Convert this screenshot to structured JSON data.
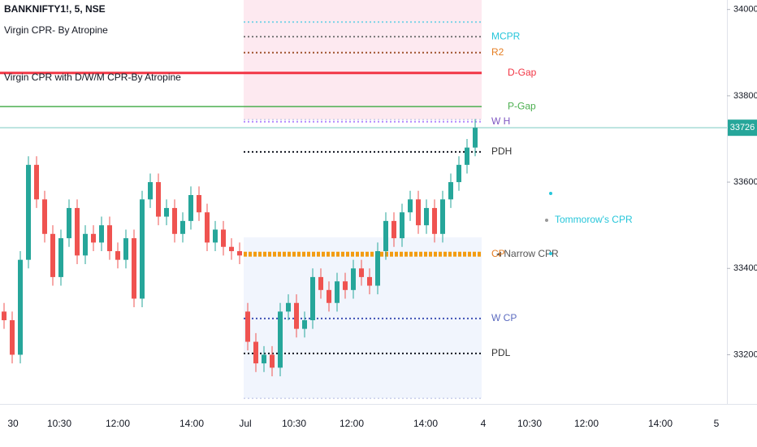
{
  "chart_data": {
    "type": "candlestick",
    "title": "BANKNIFTY1!, 5, NSE",
    "indicators": [
      "Virgin CPR- By Atropine",
      "Virgin CPR with D/W/M CPR-By Atropine"
    ],
    "x": [
      0.5,
      1.5,
      2.5,
      3.5,
      4.5,
      5.5,
      6.5,
      7.5,
      8.5,
      9.5,
      10.5,
      11.5,
      12.5,
      13.5,
      14.5,
      15.5,
      16.5,
      17.5,
      18.5,
      19.5,
      20.5,
      21.5,
      22.5,
      23.5,
      24.5,
      25.5,
      26.5,
      27.5,
      28.5,
      29.5,
      30.5,
      31.5,
      32.5,
      33.5,
      34.5,
      35.5,
      36.5,
      37.5,
      38.5,
      39.5,
      40.5,
      41.5,
      42.5,
      43.5,
      44.5,
      45.5,
      46.5,
      47.5,
      48.5,
      49.5,
      50.5,
      51.5,
      52.5,
      53.5,
      54.5,
      55.5,
      56.5,
      57.5,
      58.5
    ],
    "open": [
      33300,
      33280,
      33200,
      33420,
      33640,
      33560,
      33480,
      33380,
      33470,
      33540,
      33430,
      33480,
      33460,
      33500,
      33440,
      33420,
      33470,
      33330,
      33560,
      33600,
      33520,
      33540,
      33480,
      33510,
      33570,
      33530,
      33460,
      33490,
      33450,
      33440,
      33300,
      33230,
      33180,
      33200,
      33170,
      33300,
      33320,
      33260,
      33280,
      33380,
      33350,
      33320,
      33370,
      33350,
      33400,
      33380,
      33360,
      33440,
      33510,
      33470,
      33530,
      33560,
      33500,
      33540,
      33480,
      33560,
      33600,
      33640,
      33680
    ],
    "high": [
      33320,
      33300,
      33440,
      33660,
      33660,
      33580,
      33500,
      33490,
      33560,
      33560,
      33500,
      33500,
      33520,
      33520,
      33460,
      33490,
      33490,
      33580,
      33620,
      33620,
      33560,
      33560,
      33530,
      33590,
      33590,
      33550,
      33510,
      33510,
      33470,
      33460,
      33320,
      33250,
      33220,
      33220,
      33320,
      33340,
      33340,
      33300,
      33400,
      33400,
      33370,
      33390,
      33390,
      33420,
      33420,
      33400,
      33460,
      33530,
      33530,
      33550,
      33580,
      33580,
      33560,
      33560,
      33580,
      33620,
      33660,
      33700,
      33746
    ],
    "low": [
      33260,
      33180,
      33180,
      33400,
      33540,
      33460,
      33360,
      33360,
      33450,
      33410,
      33410,
      33440,
      33440,
      33420,
      33400,
      33400,
      33310,
      33310,
      33540,
      33500,
      33500,
      33460,
      33460,
      33490,
      33510,
      33440,
      33440,
      33430,
      33420,
      33410,
      33210,
      33160,
      33160,
      33150,
      33150,
      33280,
      33240,
      33240,
      33260,
      33330,
      33300,
      33300,
      33330,
      33330,
      33360,
      33340,
      33340,
      33420,
      33450,
      33450,
      33510,
      33480,
      33480,
      33460,
      33460,
      33540,
      33580,
      33620,
      33660
    ],
    "close": [
      33280,
      33200,
      33420,
      33640,
      33560,
      33480,
      33380,
      33470,
      33540,
      33430,
      33480,
      33460,
      33500,
      33440,
      33420,
      33470,
      33330,
      33560,
      33600,
      33520,
      33540,
      33480,
      33510,
      33570,
      33530,
      33460,
      33490,
      33450,
      33440,
      33430,
      33230,
      33180,
      33200,
      33170,
      33300,
      33320,
      33260,
      33280,
      33380,
      33350,
      33320,
      33370,
      33350,
      33400,
      33380,
      33360,
      33440,
      33510,
      33470,
      33530,
      33560,
      33500,
      33540,
      33480,
      33560,
      33600,
      33640,
      33680,
      33726
    ],
    "up_color": "#26a69a",
    "down_color": "#ef5350",
    "xlim": [
      0,
      89.5
    ],
    "xticks": [
      {
        "value": 1.6,
        "label": "30"
      },
      {
        "value": 7.3,
        "label": "10:30"
      },
      {
        "value": 14.5,
        "label": "12:00"
      },
      {
        "value": 23.6,
        "label": "14:00"
      },
      {
        "value": 30.2,
        "label": "Jul"
      },
      {
        "value": 36.2,
        "label": "10:30"
      },
      {
        "value": 43.3,
        "label": "12:00"
      },
      {
        "value": 52.4,
        "label": "14:00"
      },
      {
        "value": 59.5,
        "label": "4"
      },
      {
        "value": 65.2,
        "label": "10:30"
      },
      {
        "value": 72.2,
        "label": "12:00"
      },
      {
        "value": 81.3,
        "label": "14:00"
      },
      {
        "value": 88.2,
        "label": "5"
      }
    ],
    "ylim": [
      33086,
      34022
    ],
    "yticks": [
      33200,
      33400,
      33600,
      33800,
      34000
    ],
    "day_start": 30,
    "day_end": 59.3,
    "bands": [
      {
        "from": 33745,
        "to": 34022,
        "color": "#fce4ec"
      },
      {
        "from": 33099,
        "to": 33472,
        "color": "#eef2fc"
      }
    ],
    "levels": [
      {
        "value": 33971,
        "color": "#7fd3e6",
        "style": "dotted",
        "span": "day"
      },
      {
        "name": "MCPR",
        "value": 33937,
        "color": "#777777",
        "label_color": "#26c6da",
        "style": "dotted",
        "span": "day"
      },
      {
        "name": "R2",
        "value": 33900,
        "color": "#a0522d",
        "label_color": "#e67e22",
        "style": "dotted",
        "span": "day"
      },
      {
        "name": "D-Gap",
        "value": 33853,
        "color": "#f23645",
        "label_color": "#f23645",
        "style": "solid",
        "span": "all"
      },
      {
        "name": "P-Gap",
        "value": 33775,
        "color": "#4caf50",
        "label_color": "#4caf50",
        "style": "solid",
        "span": "all"
      },
      {
        "name": "W H",
        "value": 33740,
        "color": "#b388ff",
        "label_color": "#7e57c2",
        "style": "dotted",
        "span": "day"
      },
      {
        "name": "PDH",
        "value": 33670,
        "color": "#131722",
        "label_color": "#333333",
        "style": "dotted",
        "span": "day"
      },
      {
        "name": "CP",
        "value": 33433,
        "color": "#f39c12",
        "label_color": "#e67e22",
        "style": "thick",
        "span": "day"
      },
      {
        "name": "W CP",
        "value": 33284,
        "color": "#3f51b5",
        "label_color": "#5c6bc0",
        "style": "dotted",
        "span": "day"
      },
      {
        "name": "PDL",
        "value": 33203,
        "color": "#131722",
        "label_color": "#333333",
        "style": "dotted",
        "span": "day"
      }
    ],
    "annotations": [
      "◂ Narrow CPR",
      "Tommorow's CPR"
    ],
    "price_line_color": "#26a69a"
  }
}
